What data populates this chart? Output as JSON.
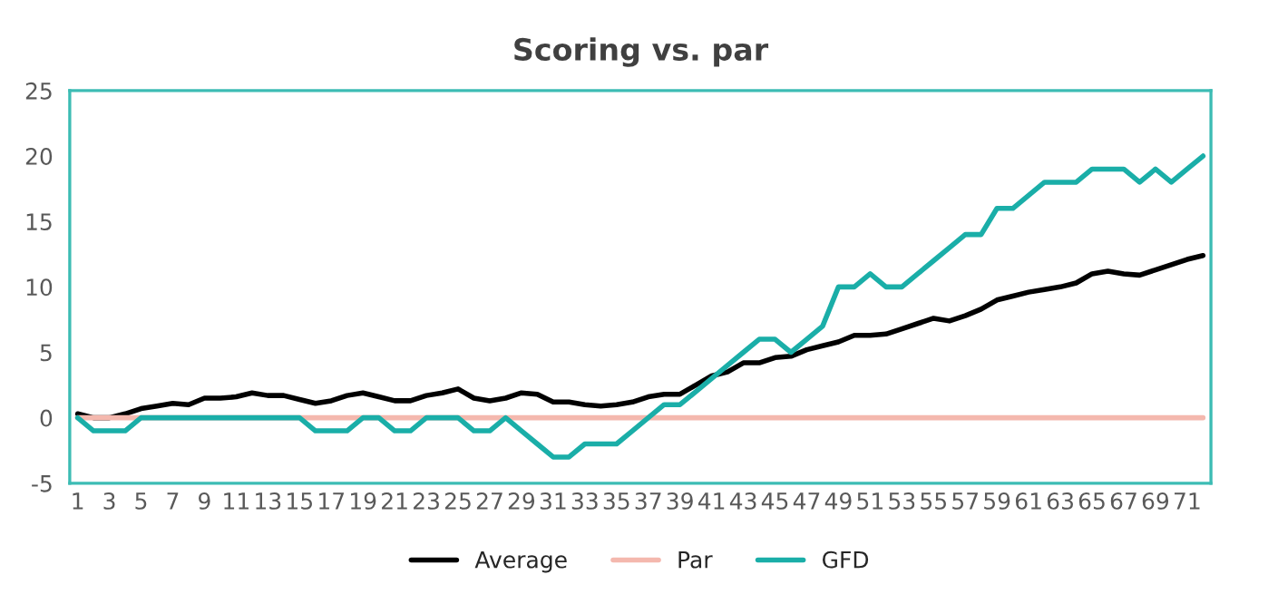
{
  "chart_data": {
    "type": "line",
    "title": "Scoring vs. par",
    "categories": [
      "1",
      null,
      "3",
      null,
      "5",
      null,
      "7",
      null,
      "9",
      null,
      "11",
      null,
      "13",
      null,
      "15",
      null,
      "17",
      null,
      "19",
      null,
      "21",
      null,
      "23",
      null,
      "25",
      null,
      "27",
      null,
      "29",
      null,
      "31",
      null,
      "33",
      null,
      "35",
      null,
      "37",
      null,
      "39",
      null,
      "41",
      null,
      "43",
      null,
      "45",
      null,
      "47",
      null,
      "49",
      null,
      "51",
      null,
      "53",
      null,
      "55",
      null,
      "57",
      null,
      "59",
      null,
      "61",
      null,
      "63",
      null,
      "65",
      null,
      "67",
      null,
      "69",
      null,
      "71",
      null
    ],
    "series": [
      {
        "name": "Average",
        "color": "#000000",
        "values": [
          0.3,
          0,
          0,
          0.3,
          0.7,
          0.9,
          1.1,
          1.0,
          1.5,
          1.5,
          1.6,
          1.9,
          1.7,
          1.7,
          1.4,
          1.1,
          1.3,
          1.7,
          1.9,
          1.6,
          1.3,
          1.3,
          1.7,
          1.9,
          2.2,
          1.5,
          1.3,
          1.5,
          1.9,
          1.8,
          1.2,
          1.2,
          1.0,
          0.9,
          1.0,
          1.2,
          1.6,
          1.8,
          1.8,
          2.5,
          3.2,
          3.5,
          4.2,
          4.2,
          4.6,
          4.7,
          5.2,
          5.5,
          5.8,
          6.3,
          6.3,
          6.4,
          6.8,
          7.2,
          7.6,
          7.4,
          7.8,
          8.3,
          9.0,
          9.3,
          9.6,
          9.8,
          10.0,
          10.3,
          11.0,
          11.2,
          11.0,
          10.9,
          11.3,
          11.7,
          12.1,
          12.4
        ]
      },
      {
        "name": "Par",
        "color": "#f4b8ae",
        "values": [
          0,
          0,
          0,
          0,
          0,
          0,
          0,
          0,
          0,
          0,
          0,
          0,
          0,
          0,
          0,
          0,
          0,
          0,
          0,
          0,
          0,
          0,
          0,
          0,
          0,
          0,
          0,
          0,
          0,
          0,
          0,
          0,
          0,
          0,
          0,
          0,
          0,
          0,
          0,
          0,
          0,
          0,
          0,
          0,
          0,
          0,
          0,
          0,
          0,
          0,
          0,
          0,
          0,
          0,
          0,
          0,
          0,
          0,
          0,
          0,
          0,
          0,
          0,
          0,
          0,
          0,
          0,
          0,
          0,
          0,
          0,
          0
        ]
      },
      {
        "name": "GFD",
        "color": "#1aaea8",
        "values": [
          0,
          -1,
          -1,
          -1,
          0,
          0,
          0,
          0,
          0,
          0,
          0,
          0,
          0,
          0,
          0,
          -1,
          -1,
          -1,
          0,
          0,
          -1,
          -1,
          0,
          0,
          0,
          -1,
          -1,
          0,
          -1,
          -2,
          -3,
          -3,
          -2,
          -2,
          -2,
          -1,
          0,
          1,
          1,
          2,
          3,
          4,
          5,
          6,
          6,
          5,
          6,
          7,
          10,
          10,
          11,
          10,
          10,
          11,
          12,
          13,
          14,
          14,
          16,
          16,
          17,
          18,
          18,
          18,
          19,
          19,
          19,
          18,
          19,
          18,
          19,
          20
        ]
      }
    ],
    "ylim": [
      -5,
      25
    ],
    "yticks": [
      -5,
      0,
      5,
      10,
      15,
      20,
      25
    ],
    "grid": false,
    "legend": "bottom",
    "marker": "none",
    "line_style": "solid"
  }
}
